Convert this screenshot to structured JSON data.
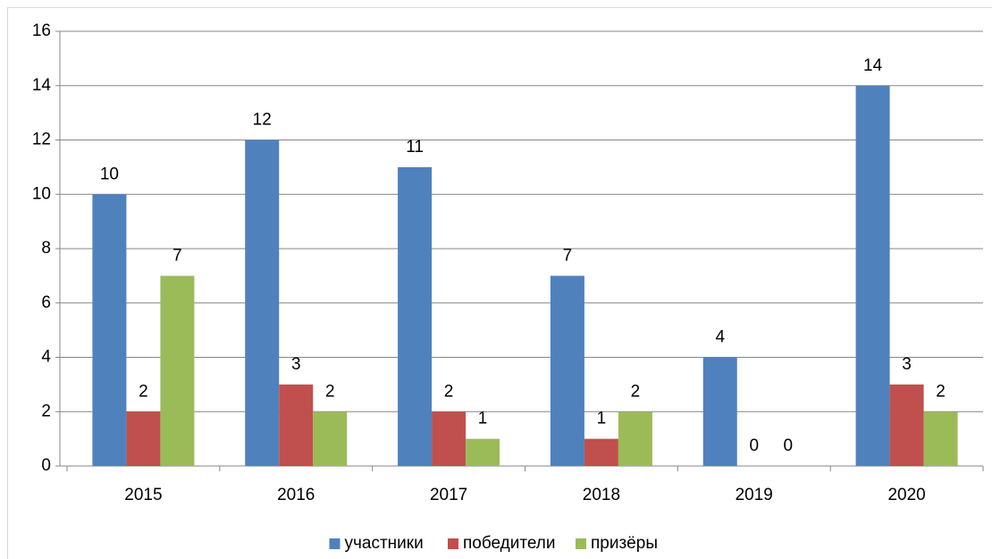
{
  "chart_data": {
    "type": "bar",
    "categories": [
      "2015",
      "2016",
      "2017",
      "2018",
      "2019",
      "2020"
    ],
    "series": [
      {
        "name": "участники",
        "color": "#4f81bd",
        "values": [
          10,
          12,
          11,
          7,
          4,
          14
        ]
      },
      {
        "name": "победители",
        "color": "#c0504d",
        "values": [
          2,
          3,
          2,
          1,
          0,
          3
        ]
      },
      {
        "name": "призёры",
        "color": "#9bbb59",
        "values": [
          7,
          2,
          1,
          2,
          0,
          2
        ]
      }
    ],
    "ylim": [
      0,
      16
    ],
    "yticks": [
      0,
      2,
      4,
      6,
      8,
      10,
      12,
      14,
      16
    ],
    "grid": true,
    "legend": "bottom"
  }
}
